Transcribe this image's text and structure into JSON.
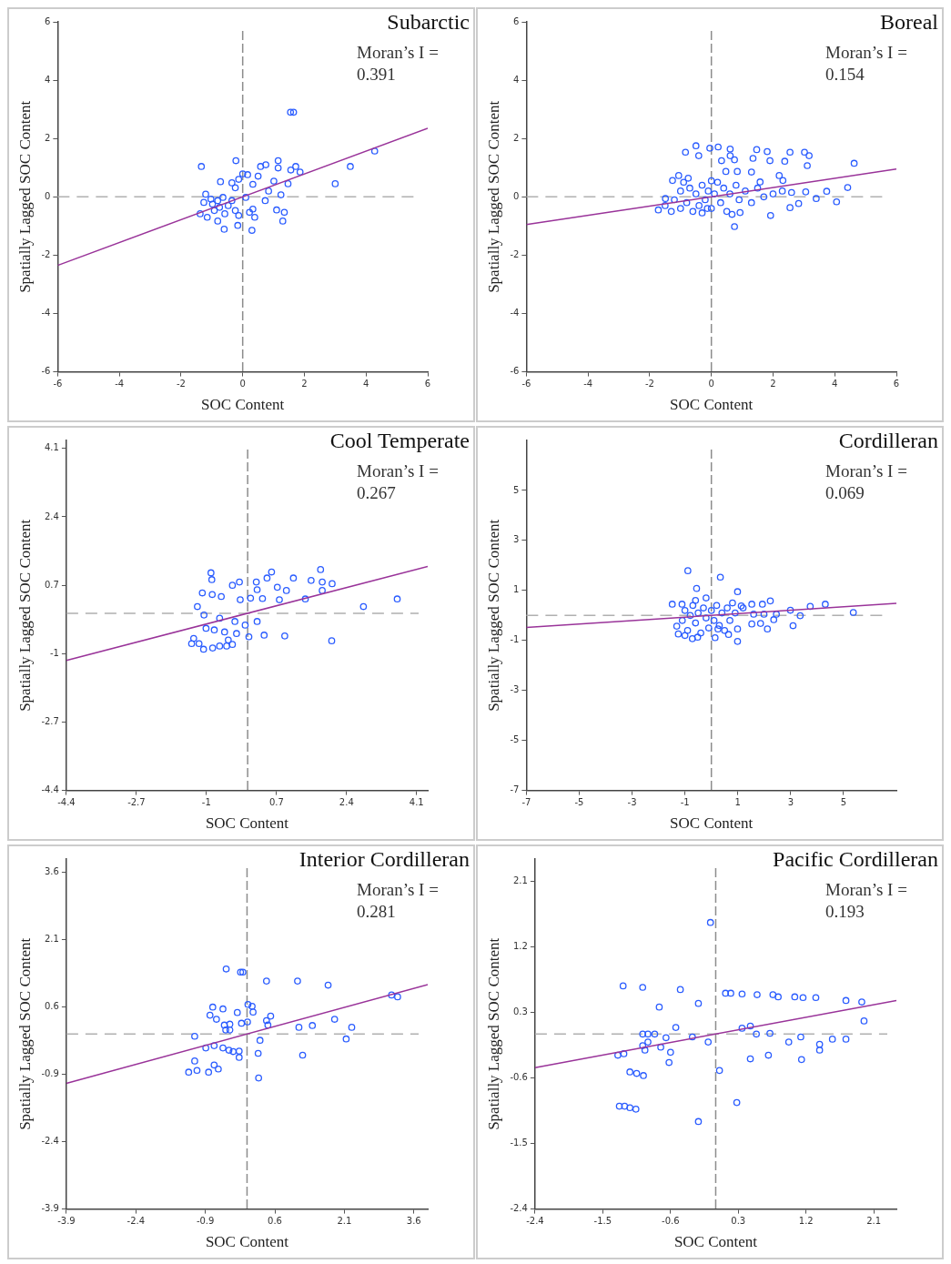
{
  "chart_data": [
    {
      "type": "scatter",
      "title": "Subarctic",
      "xlabel": "SOC Content",
      "ylabel": "Spatially Lagged SOC Content",
      "annotations": [
        "Moran’s I =",
        "0.391"
      ],
      "xlim": [
        -6,
        6
      ],
      "ylim": [
        -6,
        6
      ],
      "xticks": [
        -6,
        -4,
        -2,
        0,
        2,
        4,
        6
      ],
      "yticks": [
        -6,
        -4,
        -2,
        0,
        2,
        4,
        6
      ],
      "marker": "circle",
      "ref_lines": [
        {
          "axis": "x",
          "value": 0,
          "color": "#8c8c8c",
          "line_style": "dashed"
        },
        {
          "axis": "y",
          "value": 0,
          "color": "#b0b0b0",
          "line_style": "dashed"
        }
      ],
      "series": [
        {
          "type": "scatter",
          "color": "#2a5cff",
          "x": [
            1.55,
            1.65,
            4.28,
            3.49,
            3.0,
            -1.34,
            -0.22,
            1.15,
            1.15,
            0.58,
            0.75,
            1.72,
            1.86,
            1.56,
            1.47,
            1.24,
            1.1,
            1.35,
            1.3,
            0.3,
            -0.16,
            -0.6,
            -0.81,
            -0.72,
            0,
            0.16,
            0.5,
            0.33,
            -0.13,
            -0.35,
            -0.24,
            -1.2,
            -1.03,
            -1.26,
            -1.38,
            -1.15,
            -0.92,
            -0.64,
            -0.47,
            -0.24,
            -0.13,
            0.22,
            0.39,
            0.33,
            0.73,
            0.84,
            1.01,
            0.1,
            -0.35,
            -0.81,
            -0.98,
            -0.58,
            -0.75
          ],
          "values": [
            2.9,
            2.9,
            1.57,
            1.04,
            0.45,
            1.04,
            1.24,
            1.24,
            0.99,
            1.04,
            1.1,
            1.04,
            0.85,
            0.92,
            0.45,
            0.07,
            -0.45,
            -0.53,
            -0.83,
            -1.15,
            -0.98,
            -1.11,
            -0.83,
            0.52,
            0.79,
            0.76,
            0.71,
            0.43,
            0.6,
            0.48,
            0.31,
            0.09,
            -0.08,
            -0.19,
            -0.58,
            -0.7,
            -0.47,
            -0.02,
            -0.3,
            -0.47,
            -0.64,
            -0.53,
            -0.7,
            -0.42,
            -0.13,
            0.2,
            0.54,
            -0.02,
            -0.13,
            -0.13,
            -0.25,
            -0.58,
            -0.36
          ]
        },
        {
          "type": "line",
          "color": "#993399",
          "marker": "none",
          "x": [
            -6,
            6
          ],
          "values": [
            -2.35,
            2.35
          ]
        }
      ]
    },
    {
      "type": "scatter",
      "title": "Boreal",
      "xlabel": "SOC Content",
      "ylabel": "Spatially Lagged SOC Content",
      "annotations": [
        "Moran’s I =",
        "0.154"
      ],
      "xlim": [
        -6,
        6
      ],
      "ylim": [
        -6,
        6
      ],
      "xticks": [
        -6,
        -4,
        -2,
        0,
        2,
        4,
        6
      ],
      "yticks": [
        -6,
        -4,
        -2,
        0,
        2,
        4,
        6
      ],
      "marker": "circle",
      "ref_lines": [
        {
          "axis": "x",
          "value": 0,
          "color": "#8c8c8c",
          "line_style": "dashed"
        },
        {
          "axis": "y",
          "value": 0,
          "color": "#b0b0b0",
          "line_style": "dashed"
        }
      ],
      "series": [
        {
          "type": "scatter",
          "color": "#2a5cff",
          "x": [
            -0.5,
            -0.05,
            0.22,
            -0.84,
            -0.41,
            0.61,
            0.61,
            0.75,
            0.33,
            1.47,
            1.81,
            1.35,
            1.9,
            2.38,
            2.55,
            3.02,
            3.17,
            3.11,
            4.63,
            0.47,
            0.84,
            1.3,
            2.2,
            1.58,
            2.32,
            4.42,
            3.74,
            3.06,
            3.4,
            4.06,
            2.83,
            2.55,
            1.92,
            0.93,
            0.75,
            0.67,
            -1.72,
            -1.49,
            -1.26,
            -1.06,
            -0.75,
            -0.13,
            -1.5,
            -1.3,
            -1.2,
            -1.0,
            -1.0,
            -0.8,
            -0.7,
            -0.6,
            -0.5,
            -0.4,
            -0.3,
            -0.2,
            -0.1,
            0,
            0.1,
            0.2,
            0.3,
            0.4,
            0.5,
            0.6,
            0.8,
            0.9,
            1.1,
            1.3,
            1.5,
            1.7,
            2.0,
            2.3,
            2.6,
            -0.9,
            -0.3,
            0.0
          ],
          "values": [
            1.75,
            1.67,
            1.71,
            1.53,
            1.41,
            1.64,
            1.41,
            1.27,
            1.24,
            1.62,
            1.55,
            1.32,
            1.24,
            1.22,
            1.53,
            1.53,
            1.41,
            1.07,
            1.15,
            0.87,
            0.87,
            0.85,
            0.73,
            0.51,
            0.56,
            0.32,
            0.19,
            0.17,
            -0.06,
            -0.17,
            -0.23,
            -0.37,
            -0.64,
            -0.54,
            -1.02,
            -0.6,
            -0.45,
            -0.06,
            0.56,
            0.73,
            0.64,
            -0.4,
            -0.3,
            -0.5,
            -0.1,
            0.2,
            -0.4,
            -0.2,
            0.3,
            -0.5,
            0.1,
            -0.3,
            0.4,
            -0.1,
            0.2,
            -0.4,
            0.1,
            0.5,
            -0.2,
            0.3,
            -0.5,
            0.1,
            0.4,
            -0.1,
            0.2,
            -0.2,
            0.3,
            0.0,
            0.1,
            0.2,
            0.15,
            0.5,
            -0.55,
            0.55
          ]
        },
        {
          "type": "line",
          "color": "#993399",
          "marker": "none",
          "x": [
            -6,
            6
          ],
          "values": [
            -0.95,
            0.95
          ]
        }
      ]
    },
    {
      "type": "scatter",
      "title": "Cool Temperate",
      "xlabel": "SOC Content",
      "ylabel": "Spatially Lagged SOC Content",
      "annotations": [
        "Moran’s I =",
        "0.267"
      ],
      "xlim": [
        -4.4,
        4.37
      ],
      "ylim": [
        -4.4,
        4.3
      ],
      "xticks": [
        -4.4,
        -2.7,
        -1,
        0.7,
        2.4,
        4.1
      ],
      "yticks": [
        -4.4,
        -2.7,
        -1,
        0.7,
        2.4,
        4.1
      ],
      "marker": "circle",
      "ref_lines": [
        {
          "axis": "x",
          "value": 0,
          "color": "#8c8c8c",
          "line_style": "dashed"
        },
        {
          "axis": "y",
          "value": 0,
          "color": "#b0b0b0",
          "line_style": "dashed"
        }
      ],
      "series": [
        {
          "type": "scatter",
          "color": "#2a5cff",
          "x": [
            1.77,
            1.81,
            2.05,
            1.54,
            1.11,
            0.58,
            0.47,
            0.72,
            0.21,
            -0.2,
            -0.37,
            0.23,
            0.36,
            0.07,
            -0.18,
            0.94,
            0.77,
            1.4,
            1.81,
            2.81,
            3.63,
            2.04,
            0.9,
            0.4,
            0.23,
            -0.06,
            0.03,
            -0.27,
            -0.31,
            -0.56,
            -0.68,
            -0.89,
            -0.87,
            -1.1,
            -0.86,
            -0.64,
            -1.22,
            -1.06,
            -1.01,
            -0.81,
            -1.31,
            -1.36,
            -1.18,
            -1.07,
            -0.85,
            -0.68,
            -0.51,
            -0.37,
            -0.47
          ],
          "values": [
            1.09,
            0.78,
            0.74,
            0.82,
            0.88,
            1.03,
            0.88,
            0.65,
            0.78,
            0.78,
            0.7,
            0.59,
            0.37,
            0.38,
            0.34,
            0.57,
            0.34,
            0.36,
            0.57,
            0.17,
            0.36,
            -0.68,
            -0.56,
            -0.54,
            -0.2,
            -0.29,
            -0.58,
            -0.5,
            -0.2,
            -0.46,
            -0.12,
            1.01,
            0.84,
            0.51,
            0.47,
            0.42,
            0.17,
            -0.04,
            -0.37,
            -0.41,
            -0.62,
            -0.75,
            -0.75,
            -0.89,
            -0.86,
            -0.81,
            -0.81,
            -0.77,
            -0.66
          ]
        },
        {
          "type": "line",
          "color": "#993399",
          "marker": "none",
          "x": [
            -4.4,
            4.37
          ],
          "values": [
            -1.17,
            1.17
          ]
        }
      ]
    },
    {
      "type": "scatter",
      "title": "Cordilleran",
      "xlabel": "SOC Content",
      "ylabel": "Spatially Lagged SOC Content",
      "annotations": [
        "Moran’s I =",
        "0.069"
      ],
      "xlim": [
        -7,
        7
      ],
      "ylim": [
        -7,
        7
      ],
      "xticks": [
        -7,
        -5,
        -3,
        -1,
        1,
        3,
        5
      ],
      "yticks": [
        -7,
        -5,
        -3,
        -1,
        1,
        3,
        5
      ],
      "marker": "circle",
      "ref_lines": [
        {
          "axis": "x",
          "value": 0,
          "color": "#8c8c8c",
          "line_style": "dashed"
        },
        {
          "axis": "y",
          "value": 0,
          "color": "#b0b0b0",
          "line_style": "dashed"
        }
      ],
      "series": [
        {
          "type": "scatter",
          "color": "#2a5cff",
          "x": [
            -0.89,
            0.34,
            -0.56,
            0.99,
            -1.48,
            -1.11,
            5.37,
            4.31,
            3.74,
            3.36,
            2.99,
            2.46,
            2.23,
            1.93,
            1.99,
            1.6,
            1.53,
            1.13,
            1.86,
            1.53,
            2.12,
            2.36,
            3.09,
            0.99,
            0.99,
            0.65,
            0.14,
            0.25,
            -0.52,
            -0.72,
            -1.31,
            -1.25,
            -1.1,
            -1.0,
            -0.9,
            -0.8,
            -0.7,
            -0.6,
            -0.5,
            -0.4,
            -0.3,
            -0.2,
            -0.1,
            0,
            0.1,
            0.2,
            0.3,
            0.4,
            0.6,
            0.7,
            0.9,
            1.2,
            -1.0,
            -0.6,
            -0.2,
            0.5,
            0.8
          ],
          "values": [
            1.79,
            1.53,
            1.08,
            0.95,
            0.45,
            0.45,
            0.12,
            0.45,
            0.36,
            -0.01,
            0.21,
            0.05,
            0.58,
            0.45,
            0.05,
            0.05,
            0.45,
            0.38,
            -0.32,
            -0.34,
            -0.54,
            -0.17,
            -0.41,
            -1.04,
            -0.54,
            -0.76,
            -0.89,
            -0.54,
            -0.87,
            -0.93,
            -0.43,
            -0.74,
            -0.2,
            0.2,
            -0.6,
            0.0,
            0.4,
            -0.3,
            0.1,
            -0.7,
            0.3,
            -0.1,
            -0.5,
            0.2,
            -0.2,
            0.4,
            -0.4,
            0.1,
            0.3,
            -0.2,
            0.1,
            0.3,
            -0.8,
            0.6,
            0.7,
            -0.6,
            0.5
          ]
        },
        {
          "type": "line",
          "color": "#993399",
          "marker": "none",
          "x": [
            -7,
            7
          ],
          "values": [
            -0.48,
            0.48
          ]
        }
      ]
    },
    {
      "type": "scatter",
      "title": "Interior Cordilleran",
      "xlabel": "SOC Content",
      "ylabel": "Spatially Lagged SOC Content",
      "annotations": [
        "Moran’s I =",
        "0.281"
      ],
      "xlim": [
        -3.9,
        3.9
      ],
      "ylim": [
        -3.9,
        3.9
      ],
      "xticks": [
        -3.9,
        -2.4,
        -0.9,
        0.6,
        2.1,
        3.6
      ],
      "yticks": [
        -3.9,
        -2.4,
        -0.9,
        0.6,
        2.1,
        3.6
      ],
      "marker": "circle",
      "ref_lines": [
        {
          "axis": "x",
          "value": 0,
          "color": "#8c8c8c",
          "line_style": "dashed"
        },
        {
          "axis": "y",
          "value": 0,
          "color": "#b0b0b0",
          "line_style": "dashed"
        }
      ],
      "series": [
        {
          "type": "scatter",
          "color": "#2a5cff",
          "x": [
            -0.45,
            -0.14,
            -0.09,
            0.42,
            1.09,
            1.75,
            3.12,
            3.25,
            -0.74,
            -0.52,
            -0.8,
            -0.66,
            -0.21,
            0.02,
            0.11,
            0.13,
            -0.12,
            0.01,
            -0.49,
            -0.37,
            -0.46,
            -0.37,
            0.51,
            0.42,
            0.45,
            1.12,
            1.41,
            1.89,
            2.26,
            2.14,
            -1.13,
            0.28,
            0.24,
            1.2,
            0.25,
            -0.89,
            -0.71,
            -0.52,
            -0.39,
            -0.3,
            -0.17,
            -0.17,
            -1.13,
            -1.08,
            -1.26,
            -0.83,
            -0.71,
            -0.62
          ],
          "values": [
            1.45,
            1.38,
            1.38,
            1.18,
            1.18,
            1.09,
            0.87,
            0.83,
            0.6,
            0.56,
            0.42,
            0.33,
            0.48,
            0.66,
            0.62,
            0.49,
            0.24,
            0.27,
            0.2,
            0.22,
            0.09,
            0.09,
            0.4,
            0.3,
            0.2,
            0.15,
            0.19,
            0.33,
            0.15,
            -0.11,
            -0.05,
            -0.14,
            -0.43,
            -0.47,
            -0.98,
            -0.31,
            -0.26,
            -0.31,
            -0.36,
            -0.39,
            -0.38,
            -0.52,
            -0.6,
            -0.81,
            -0.85,
            -0.85,
            -0.69,
            -0.78
          ]
        },
        {
          "type": "line",
          "color": "#993399",
          "marker": "none",
          "x": [
            -3.9,
            3.9
          ],
          "values": [
            -1.1,
            1.1
          ]
        }
      ]
    },
    {
      "type": "scatter",
      "title": "Pacific Cordilleran",
      "xlabel": "SOC Content",
      "ylabel": "Spatially Lagged SOC Content",
      "annotations": [
        "Moran’s I =",
        "0.193"
      ],
      "xlim": [
        -2.4,
        2.4
      ],
      "ylim": [
        -2.4,
        2.4
      ],
      "xticks": [
        -2.4,
        -1.5,
        -0.6,
        0.3,
        1.2,
        2.1
      ],
      "yticks": [
        -2.4,
        -1.5,
        -0.6,
        0.3,
        1.2,
        2.1
      ],
      "marker": "circle",
      "ref_lines": [
        {
          "axis": "x",
          "value": 0,
          "color": "#8c8c8c",
          "line_style": "dashed"
        },
        {
          "axis": "y",
          "value": 0,
          "color": "#b0b0b0",
          "line_style": "dashed"
        }
      ],
      "series": [
        {
          "type": "scatter",
          "color": "#2a5cff",
          "x": [
            -0.07,
            -1.23,
            -0.97,
            -0.47,
            -0.75,
            -0.23,
            0.13,
            0.2,
            0.35,
            0.55,
            0.76,
            0.83,
            1.05,
            1.16,
            1.33,
            1.73,
            1.94,
            1.97,
            0.35,
            0.46,
            0.54,
            0.72,
            1.13,
            0.97,
            1.38,
            1.38,
            1.55,
            1.73,
            0.46,
            0.7,
            1.14,
            0.05,
            0.28,
            -0.23,
            -0.1,
            -0.31,
            -0.53,
            -0.66,
            -0.6,
            -0.62,
            -0.73,
            -0.97,
            -0.9,
            -0.81,
            -0.97,
            -0.9,
            -0.94,
            -1.3,
            -1.22,
            -1.14,
            -1.05,
            -0.96,
            -1.28,
            -1.21,
            -1.14,
            -1.06
          ],
          "values": [
            1.53,
            0.66,
            0.64,
            0.61,
            0.37,
            0.42,
            0.56,
            0.56,
            0.55,
            0.54,
            0.54,
            0.51,
            0.51,
            0.5,
            0.5,
            0.46,
            0.44,
            0.18,
            0.08,
            0.11,
            0.0,
            0.01,
            -0.04,
            -0.11,
            -0.14,
            -0.22,
            -0.07,
            -0.07,
            -0.34,
            -0.29,
            -0.35,
            -0.5,
            -0.94,
            -1.2,
            -0.11,
            -0.04,
            0.09,
            -0.05,
            -0.25,
            -0.39,
            -0.18,
            0.0,
            0.0,
            0.0,
            -0.16,
            -0.11,
            -0.22,
            -0.29,
            -0.27,
            -0.52,
            -0.54,
            -0.57,
            -0.99,
            -0.99,
            -1.01,
            -1.03
          ]
        },
        {
          "type": "line",
          "color": "#993399",
          "marker": "none",
          "x": [
            -2.4,
            2.4
          ],
          "values": [
            -0.46,
            0.46
          ]
        }
      ]
    }
  ]
}
